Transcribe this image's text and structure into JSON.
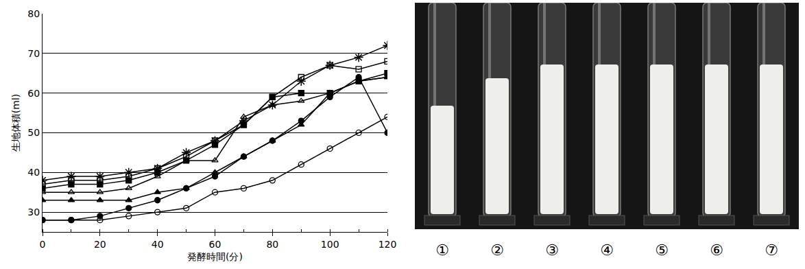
{
  "chart_data": {
    "type": "line",
    "x_label": "発酵時間(分)",
    "y_label": "生地体積(ml)",
    "x": [
      0,
      10,
      20,
      30,
      40,
      50,
      60,
      70,
      80,
      90,
      100,
      110,
      120
    ],
    "series": [
      {
        "marker": "asterisk",
        "color": "#000000",
        "values": [
          38,
          39,
          39,
          40,
          41,
          45,
          48,
          53,
          57,
          63,
          67,
          69,
          72
        ]
      },
      {
        "marker": "open square",
        "color": "#000000",
        "values": [
          37,
          38,
          38,
          39,
          41,
          44,
          48,
          52,
          59,
          64,
          67,
          66,
          68
        ]
      },
      {
        "marker": "square",
        "color": "#000000",
        "values": [
          36,
          37,
          37,
          38,
          40,
          43,
          47,
          52,
          59,
          60,
          60,
          63,
          65
        ]
      },
      {
        "marker": "open triangle",
        "color": "#000000",
        "values": [
          35,
          35,
          35,
          36,
          39,
          43,
          43,
          54,
          57,
          58,
          60,
          63,
          64
        ]
      },
      {
        "marker": "triangle",
        "color": "#000000",
        "values": [
          33,
          33,
          33,
          33,
          35,
          36,
          40,
          44,
          48,
          52,
          60,
          63,
          64
        ]
      },
      {
        "marker": "circle",
        "color": "#000000",
        "values": [
          28,
          28,
          29,
          31,
          33,
          36,
          39,
          44,
          48,
          53,
          59,
          64,
          50
        ]
      },
      {
        "marker": "open circle",
        "color": "#000000",
        "values": [
          28,
          28,
          28,
          29,
          30,
          31,
          35,
          36,
          38,
          42,
          46,
          50,
          54
        ]
      }
    ],
    "xlim": [
      0,
      120
    ],
    "xticks": [
      0,
      20,
      40,
      60,
      80,
      100,
      120
    ],
    "ylim": [
      25,
      80
    ],
    "yticks": [
      30,
      40,
      50,
      60,
      70,
      80
    ],
    "grid": true,
    "photo_labels": [
      "①",
      "②",
      "③",
      "④",
      "⑤",
      "⑥",
      "⑦"
    ]
  }
}
